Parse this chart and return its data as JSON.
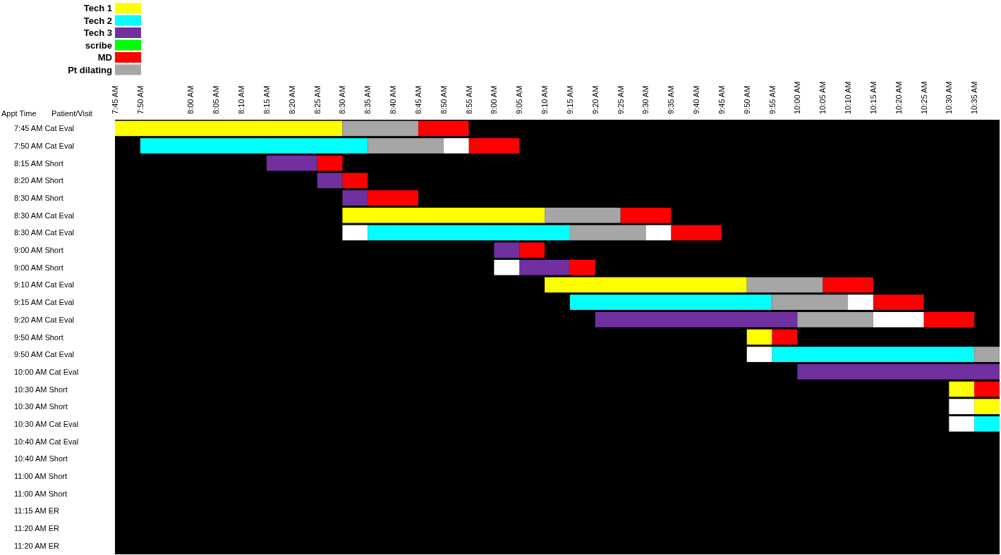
{
  "chart_data": {
    "type": "bar",
    "orientation": "horizontal",
    "legend": "top left",
    "grid": false,
    "ylabel": "Appt Time",
    "y2label": "Patient/Visit",
    "categories": [
      "7:45 AM Cat Eval",
      "7:50 AM Cat Eval",
      "8:15 AM Short",
      "8:20 AM Short",
      "8:30 AM Short",
      "8:30 AM Cat Eval",
      "8:30 AM Cat Eval",
      "9:00 AM Short",
      "9:00 AM Short",
      "9:10 AM Cat Eval",
      "9:15 AM Cat Eval",
      "9:20 AM Cat Eval",
      "9:50 AM Short",
      "9:50 AM Cat Eval",
      "10:00 AM Cat Eval",
      "10:30 AM Short",
      "10:30 AM Short",
      "10:30 AM Cat Eval",
      "10:40 AM Cat Eval",
      "10:40 AM Short",
      "11:00 AM Short",
      "11:00 AM Short",
      "11:15 AM ER",
      "11:20 AM ER",
      "11:20 AM ER"
    ],
    "xlim": [
      7.75,
      10.6667
    ],
    "xticks": [
      {
        "value": 7.75,
        "label": "7:45 AM"
      },
      {
        "value": 7.8333,
        "label": "7:50 AM"
      },
      {
        "value": 8,
        "label": "8:00 AM"
      },
      {
        "value": 8.0833,
        "label": "8:05 AM"
      },
      {
        "value": 8.1667,
        "label": "8:10 AM"
      },
      {
        "value": 8.25,
        "label": "8:15 AM"
      },
      {
        "value": 8.3333,
        "label": "8:20 AM"
      },
      {
        "value": 8.4167,
        "label": "8:25 AM"
      },
      {
        "value": 8.5,
        "label": "8:30 AM"
      },
      {
        "value": 8.5833,
        "label": "8:35 AM"
      },
      {
        "value": 8.6667,
        "label": "8:40 AM"
      },
      {
        "value": 8.75,
        "label": "8:45 AM"
      },
      {
        "value": 8.8333,
        "label": "8:50 AM"
      },
      {
        "value": 8.9167,
        "label": "8:55 AM"
      },
      {
        "value": 9,
        "label": "9:00 AM"
      },
      {
        "value": 9.0833,
        "label": "9:05 AM"
      },
      {
        "value": 9.1667,
        "label": "9:10 AM"
      },
      {
        "value": 9.25,
        "label": "9:15 AM"
      },
      {
        "value": 9.3333,
        "label": "9:20 AM"
      },
      {
        "value": 9.4167,
        "label": "9:25 AM"
      },
      {
        "value": 9.5,
        "label": "9:30 AM"
      },
      {
        "value": 9.5833,
        "label": "9:35 AM"
      },
      {
        "value": 9.6667,
        "label": "9:40 AM"
      },
      {
        "value": 9.75,
        "label": "9:45 AM"
      },
      {
        "value": 9.8333,
        "label": "9:50 AM"
      },
      {
        "value": 9.9167,
        "label": "9:55 AM"
      },
      {
        "value": 10,
        "label": "10:00 AM"
      },
      {
        "value": 10.0833,
        "label": "10:05 AM"
      },
      {
        "value": 10.1667,
        "label": "10:10 AM"
      },
      {
        "value": 10.25,
        "label": "10:15 AM"
      },
      {
        "value": 10.3333,
        "label": "10:20 AM"
      },
      {
        "value": 10.4167,
        "label": "10:25 AM"
      },
      {
        "value": 10.5,
        "label": "10:30 AM"
      },
      {
        "value": 10.5833,
        "label": "10:35 AM"
      }
    ],
    "series": [
      {
        "name": "Tech 1",
        "color": "#ffff00",
        "values": [
          0.75,
          null,
          null,
          null,
          null,
          0.6667,
          null,
          null,
          null,
          0.6667,
          null,
          null,
          0.0833,
          null,
          null,
          0.0833,
          0.0833,
          null,
          null,
          null,
          null,
          null,
          null,
          null,
          null
        ],
        "base": [
          7.75,
          null,
          null,
          null,
          null,
          8.5,
          null,
          null,
          null,
          9.1667,
          null,
          null,
          9.8333,
          null,
          null,
          10.5,
          10.5833,
          null,
          null,
          null,
          null,
          null,
          null,
          null,
          null
        ]
      },
      {
        "name": "Tech 2",
        "color": "#00ffff",
        "values": [
          null,
          0.75,
          null,
          null,
          null,
          null,
          0.6667,
          null,
          null,
          null,
          0.6667,
          null,
          null,
          0.6667,
          null,
          null,
          null,
          0.0833,
          null,
          null,
          null,
          null,
          null,
          null,
          null
        ],
        "base": [
          null,
          7.8333,
          null,
          null,
          null,
          null,
          8.5833,
          null,
          null,
          null,
          9.25,
          null,
          null,
          9.9167,
          null,
          null,
          null,
          10.5833,
          null,
          null,
          null,
          null,
          null,
          null,
          null
        ]
      },
      {
        "name": "Tech 3",
        "color": "#7030a0",
        "values": [
          null,
          null,
          0.1667,
          0.0833,
          0.0833,
          null,
          null,
          0.0833,
          0.1667,
          null,
          null,
          0.6667,
          null,
          null,
          0.6667,
          null,
          null,
          null,
          null,
          null,
          null,
          null,
          null,
          null,
          null
        ],
        "base": [
          null,
          null,
          8.25,
          8.4167,
          8.5,
          null,
          null,
          9,
          9.0833,
          null,
          null,
          9.3333,
          null,
          null,
          10,
          null,
          null,
          null,
          null,
          null,
          null,
          null,
          null,
          null,
          null
        ]
      },
      {
        "name": "scribe",
        "color": "#00ff00",
        "values": [
          null,
          null,
          null,
          null,
          null,
          null,
          null,
          null,
          null,
          null,
          null,
          null,
          null,
          null,
          null,
          null,
          null,
          null,
          null,
          null,
          null,
          null,
          null,
          null,
          null
        ]
      },
      {
        "name": "MD",
        "color": "#ff0000",
        "values": [
          0.1667,
          0.1667,
          0.0833,
          0.0833,
          0.1667,
          0.1667,
          0.1667,
          0.0833,
          0.0833,
          0.1667,
          0.1667,
          0.1667,
          0.0833,
          null,
          null,
          0.0833,
          null,
          null,
          null,
          null,
          null,
          null,
          null,
          null,
          null
        ],
        "base": [
          8.75,
          8.9167,
          8.4167,
          8.5,
          8.5833,
          9.4167,
          9.5833,
          9.0833,
          9.25,
          10.0833,
          10.25,
          10.4167,
          9.9167,
          null,
          null,
          10.5833,
          null,
          null,
          null,
          null,
          null,
          null,
          null,
          null,
          null
        ]
      },
      {
        "name": "Pt dilating",
        "color": "#a6a6a6",
        "values": [
          0.25,
          0.25,
          null,
          null,
          null,
          0.25,
          0.25,
          null,
          null,
          0.25,
          0.25,
          0.25,
          null,
          0.0833,
          null,
          null,
          null,
          null,
          null,
          null,
          null,
          null,
          null,
          null,
          null
        ],
        "base": [
          8.5,
          8.5833,
          null,
          null,
          null,
          9.1667,
          9.25,
          null,
          null,
          9.8333,
          9.9167,
          10,
          null,
          10.5833,
          null,
          null,
          null,
          null,
          null,
          null,
          null,
          null,
          null,
          null,
          null
        ]
      },
      {
        "color": "#ffffff",
        "values": [
          null,
          0.0833,
          null,
          null,
          null,
          null,
          0.0833,
          null,
          0.0833,
          null,
          0.0833,
          0.1667,
          null,
          0.0833,
          null,
          null,
          0.0833,
          0.0833,
          null,
          null,
          null,
          null,
          null,
          null,
          null
        ],
        "base": [
          null,
          8.8333,
          null,
          null,
          null,
          null,
          8.5,
          null,
          9,
          null,
          10.1667,
          10.25,
          null,
          9.8333,
          null,
          null,
          10.5,
          10.5,
          null,
          null,
          null,
          null,
          null,
          null,
          null
        ]
      },
      {
        "color": "#ffffff",
        "values": [
          null,
          null,
          null,
          null,
          null,
          null,
          0.0833,
          null,
          null,
          null,
          null,
          null,
          null,
          null,
          null,
          null,
          null,
          null,
          null,
          null,
          null,
          null,
          null,
          null,
          null
        ],
        "base": [
          null,
          null,
          null,
          null,
          null,
          null,
          9.5,
          null,
          null,
          null,
          null,
          null,
          null,
          null,
          null,
          null,
          null,
          null,
          null,
          null,
          null,
          null,
          null,
          null,
          null
        ]
      }
    ]
  }
}
